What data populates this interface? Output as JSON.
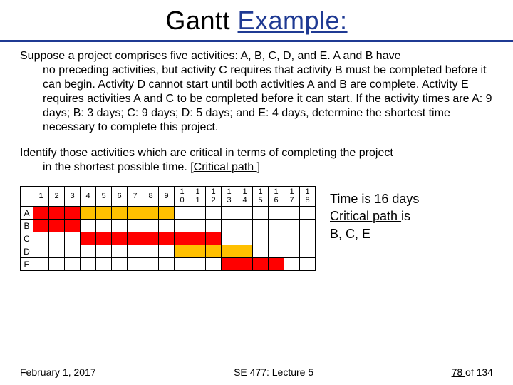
{
  "title": {
    "plain": "Gantt ",
    "emph": "Example:"
  },
  "para1_line1": "Suppose a project comprises five activities: A, B, C, D, and E. A and B have",
  "para1_rest": "no preceding activities, but activity C requires that activity B must be completed before it can begin. Activity D cannot start until both activities A and B are complete. Activity E requires activities A and C to be completed before it can start.  If the activity times are A: 9 days; B: 3 days; C: 9 days; D: 5 days; and E: 4 days, determine the shortest time necessary to complete this project.",
  "para2_line1": "Identify those activities which are critical in terms of completing the project",
  "para2_rest_a": "in the shortest possible time. [",
  "para2_rest_b": "Critical path ",
  "para2_rest_c": "]",
  "gantt": {
    "headers": [
      "1",
      "2",
      "3",
      "4",
      "5",
      "6",
      "7",
      "8",
      "9",
      "1\n0",
      "1\n1",
      "1\n2",
      "1\n3",
      "1\n4",
      "1\n5",
      "1\n6",
      "1\n7",
      "1\n8"
    ],
    "rows": [
      {
        "label": "A",
        "cells": [
          "red",
          "red",
          "red",
          "yellow",
          "yellow",
          "yellow",
          "yellow",
          "yellow",
          "yellow",
          "",
          "",
          "",
          "",
          "",
          "",
          "",
          "",
          ""
        ]
      },
      {
        "label": "B",
        "cells": [
          "red",
          "red",
          "red",
          "",
          "",
          "",
          "",
          "",
          "",
          "",
          "",
          "",
          "",
          "",
          "",
          "",
          "",
          ""
        ]
      },
      {
        "label": "C",
        "cells": [
          "",
          "",
          "",
          "red",
          "red",
          "red",
          "red",
          "red",
          "red",
          "red",
          "red",
          "red",
          "",
          "",
          "",
          "",
          "",
          ""
        ]
      },
      {
        "label": "D",
        "cells": [
          "",
          "",
          "",
          "",
          "",
          "",
          "",
          "",
          "",
          "yellow",
          "yellow",
          "yellow",
          "yellow",
          "yellow",
          "",
          "",
          "",
          ""
        ]
      },
      {
        "label": "E",
        "cells": [
          "",
          "",
          "",
          "",
          "",
          "",
          "",
          "",
          "",
          "",
          "",
          "",
          "red",
          "red",
          "red",
          "red",
          "",
          ""
        ]
      }
    ],
    "colors": {
      "red": "#ff0000",
      "yellow": "#ffc000"
    }
  },
  "result": {
    "l1": "Time is 16 days",
    "l2a": "Critical path ",
    "l2b": "is",
    "l3": "B, C, E"
  },
  "footer": {
    "left": "February 1, 2017",
    "center": "SE 477: Lecture 5",
    "right_a": "78 ",
    "right_b": "of 134"
  }
}
